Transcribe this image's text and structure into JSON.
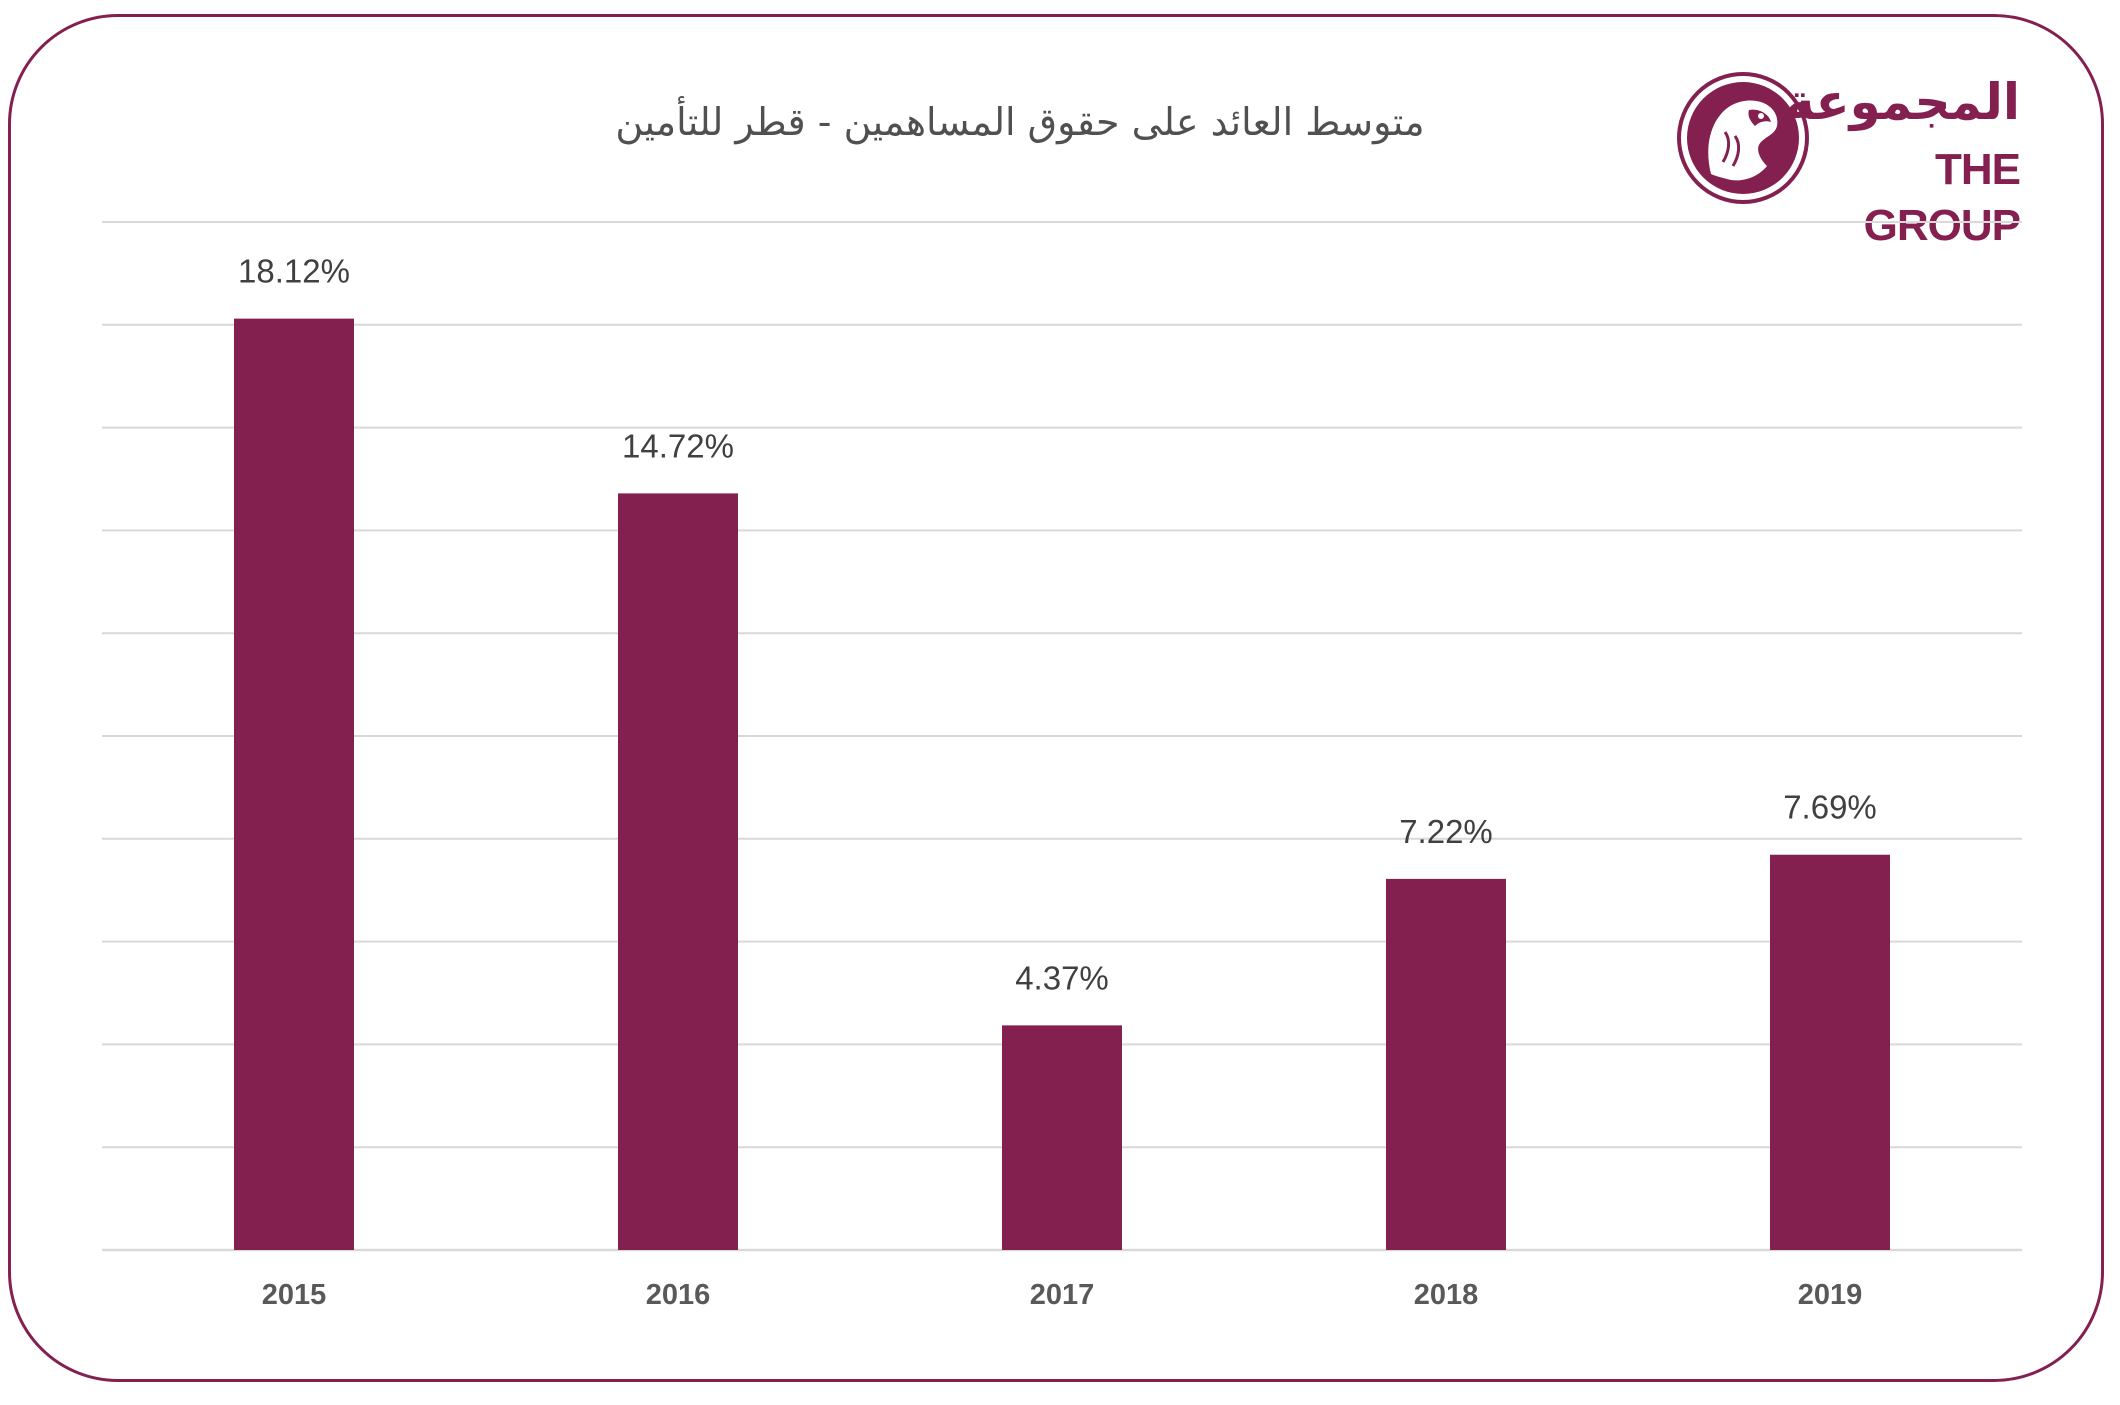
{
  "chart_data": {
    "type": "bar",
    "title": "متوسط العائد على حقوق المساهمين - قطر للتأمين",
    "categories": [
      "2015",
      "2016",
      "2017",
      "2018",
      "2019"
    ],
    "values": [
      18.12,
      14.72,
      4.37,
      7.22,
      7.69
    ],
    "data_labels": [
      "18.12%",
      "14.72%",
      "4.37%",
      "7.22%",
      "7.69%"
    ],
    "xlabel": "",
    "ylabel": "",
    "ylim": [
      0,
      20
    ],
    "grid": true,
    "y_tick_labels_shown": false,
    "legend": "none",
    "bar_color": "#84204f",
    "grid_color": "#d9d9d9"
  },
  "logo": {
    "arabic_text": "المجموعة",
    "english_text": "THE GROUP",
    "color": "#84204f"
  }
}
